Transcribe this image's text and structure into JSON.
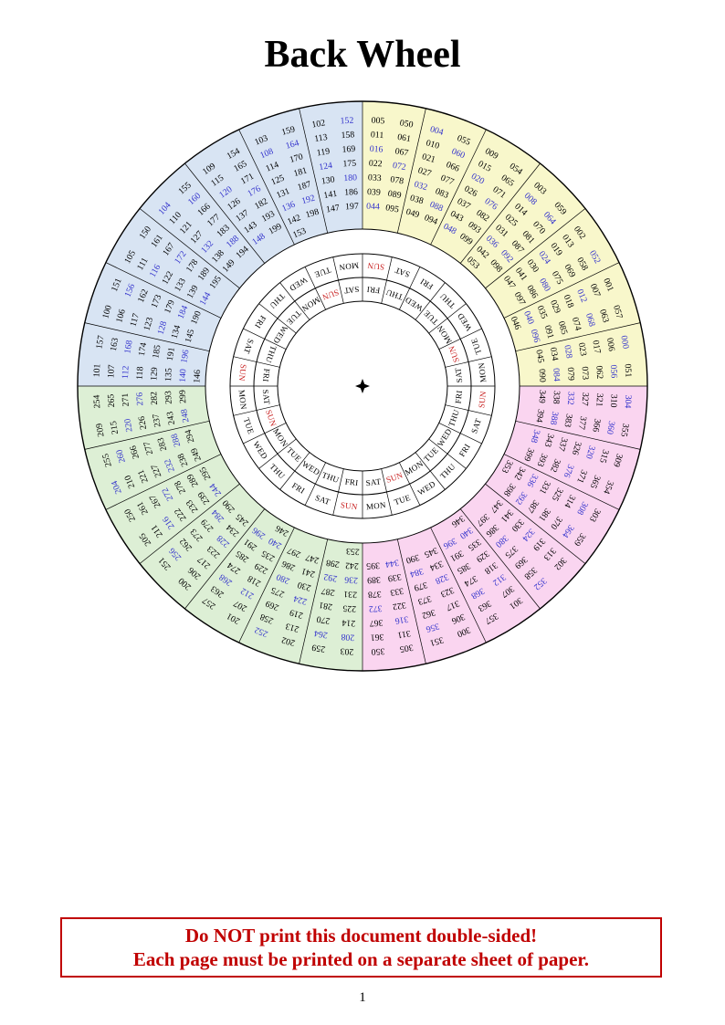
{
  "title": "Back Wheel",
  "page_number": "1",
  "warning": {
    "line1": "Do NOT print this document double-sided!",
    "line2": "Each page must be printed on a separate sheet of paper."
  },
  "colors": {
    "quadrant_yellow": "#f8f7cb",
    "quadrant_pink": "#fad5f0",
    "quadrant_green": "#ddefd5",
    "quadrant_blue": "#d8e4f3",
    "leap_year": "#3333cc",
    "sunday": "#c82020",
    "warning_red": "#c00000",
    "line": "#000000"
  },
  "wheel": {
    "center_marker": "four-pointed-star",
    "sectors": [
      {
        "q": "yellow",
        "outer": [
          "005",
          "011",
          "016",
          "022",
          "033",
          "039",
          "044"
        ],
        "inner": [
          "050",
          "061",
          "067",
          "072",
          "078",
          "089",
          "095"
        ]
      },
      {
        "q": "yellow",
        "outer": [
          "004",
          "010",
          "021",
          "027",
          "032",
          "038",
          "049"
        ],
        "inner": [
          "055",
          "060",
          "066",
          "077",
          "083",
          "088",
          "094"
        ]
      },
      {
        "q": "yellow",
        "outer": [
          "009",
          "015",
          "020",
          "026",
          "037",
          "043",
          "048"
        ],
        "inner": [
          "054",
          "065",
          "071",
          "076",
          "082",
          "093",
          "099"
        ]
      },
      {
        "q": "yellow",
        "outer": [
          "003",
          "008",
          "014",
          "025",
          "031",
          "036",
          "042",
          "053"
        ],
        "inner": [
          "059",
          "064",
          "070",
          "081",
          "087",
          "092",
          "098"
        ]
      },
      {
        "q": "yellow",
        "outer": [
          "002",
          "013",
          "019",
          "024",
          "030",
          "041",
          "047"
        ],
        "inner": [
          "052",
          "058",
          "069",
          "075",
          "080",
          "086",
          "097"
        ]
      },
      {
        "q": "yellow",
        "outer": [
          "001",
          "007",
          "012",
          "018",
          "029",
          "035",
          "040",
          "046"
        ],
        "inner": [
          "057",
          "063",
          "068",
          "074",
          "085",
          "091",
          "096"
        ]
      },
      {
        "q": "yellow",
        "outer": [
          "000",
          "006",
          "017",
          "023",
          "028",
          "034",
          "045"
        ],
        "inner": [
          "051",
          "056",
          "062",
          "073",
          "079",
          "084",
          "090"
        ]
      },
      {
        "q": "pink",
        "outer": [
          "304",
          "310",
          "321",
          "327",
          "332",
          "338",
          "349"
        ],
        "inner": [
          "355",
          "360",
          "366",
          "377",
          "383",
          "388",
          "394"
        ]
      },
      {
        "q": "pink",
        "outer": [
          "309",
          "315",
          "320",
          "326",
          "337",
          "343",
          "348"
        ],
        "inner": [
          "354",
          "365",
          "371",
          "376",
          "382",
          "393",
          "399"
        ]
      },
      {
        "q": "pink",
        "outer": [
          "303",
          "308",
          "314",
          "325",
          "331",
          "336",
          "342",
          "353"
        ],
        "inner": [
          "359",
          "364",
          "370",
          "381",
          "387",
          "392",
          "398"
        ]
      },
      {
        "q": "pink",
        "outer": [
          "302",
          "313",
          "319",
          "324",
          "330",
          "341",
          "347"
        ],
        "inner": [
          "352",
          "358",
          "369",
          "375",
          "380",
          "386",
          "397"
        ]
      },
      {
        "q": "pink",
        "outer": [
          "301",
          "307",
          "312",
          "318",
          "329",
          "335",
          "340",
          "346"
        ],
        "inner": [
          "357",
          "363",
          "368",
          "374",
          "385",
          "391",
          "396"
        ]
      },
      {
        "q": "pink",
        "outer": [
          "300",
          "306",
          "317",
          "323",
          "328",
          "334",
          "345"
        ],
        "inner": [
          "351",
          "356",
          "362",
          "373",
          "379",
          "384",
          "390"
        ]
      },
      {
        "q": "pink",
        "outer": [
          "305",
          "311",
          "316",
          "322",
          "333",
          "339",
          "344"
        ],
        "inner": [
          "350",
          "361",
          "367",
          "372",
          "378",
          "389",
          "395"
        ]
      },
      {
        "q": "green",
        "outer": [
          "203",
          "208",
          "214",
          "225",
          "231",
          "236",
          "242",
          "253"
        ],
        "inner": [
          "259",
          "264",
          "270",
          "281",
          "287",
          "292",
          "298"
        ]
      },
      {
        "q": "green",
        "outer": [
          "202",
          "213",
          "219",
          "224",
          "230",
          "241",
          "247"
        ],
        "inner": [
          "252",
          "258",
          "269",
          "275",
          "280",
          "286",
          "297"
        ]
      },
      {
        "q": "green",
        "outer": [
          "201",
          "207",
          "212",
          "218",
          "229",
          "235",
          "240",
          "246"
        ],
        "inner": [
          "257",
          "263",
          "268",
          "274",
          "285",
          "291",
          "296"
        ]
      },
      {
        "q": "green",
        "outer": [
          "200",
          "206",
          "217",
          "223",
          "228",
          "234",
          "245"
        ],
        "inner": [
          "251",
          "256",
          "262",
          "273",
          "279",
          "284",
          "290"
        ]
      },
      {
        "q": "green",
        "outer": [
          "205",
          "211",
          "216",
          "222",
          "233",
          "239",
          "244"
        ],
        "inner": [
          "250",
          "261",
          "267",
          "272",
          "278",
          "289",
          "295"
        ]
      },
      {
        "q": "green",
        "outer": [
          "204",
          "210",
          "221",
          "227",
          "232",
          "238",
          "249"
        ],
        "inner": [
          "255",
          "260",
          "266",
          "277",
          "283",
          "288",
          "294"
        ]
      },
      {
        "q": "green",
        "outer": [
          "209",
          "215",
          "220",
          "226",
          "237",
          "243",
          "248"
        ],
        "inner": [
          "254",
          "265",
          "271",
          "276",
          "282",
          "293",
          "299"
        ]
      },
      {
        "q": "blue",
        "outer": [
          "101",
          "107",
          "112",
          "118",
          "129",
          "135",
          "140",
          "146"
        ],
        "inner": [
          "157",
          "163",
          "168",
          "174",
          "185",
          "191",
          "196"
        ]
      },
      {
        "q": "blue",
        "outer": [
          "100",
          "106",
          "117",
          "123",
          "128",
          "134",
          "145"
        ],
        "inner": [
          "151",
          "156",
          "162",
          "173",
          "179",
          "184",
          "190"
        ]
      },
      {
        "q": "blue",
        "outer": [
          "105",
          "111",
          "116",
          "122",
          "133",
          "139",
          "144"
        ],
        "inner": [
          "150",
          "161",
          "167",
          "172",
          "178",
          "189",
          "195"
        ]
      },
      {
        "q": "blue",
        "outer": [
          "104",
          "110",
          "121",
          "127",
          "132",
          "138",
          "149"
        ],
        "inner": [
          "155",
          "160",
          "166",
          "177",
          "183",
          "188",
          "194"
        ]
      },
      {
        "q": "blue",
        "outer": [
          "109",
          "115",
          "120",
          "126",
          "137",
          "143",
          "148"
        ],
        "inner": [
          "154",
          "165",
          "171",
          "176",
          "182",
          "193",
          "199"
        ]
      },
      {
        "q": "blue",
        "outer": [
          "103",
          "108",
          "114",
          "125",
          "131",
          "136",
          "142",
          "153"
        ],
        "inner": [
          "159",
          "164",
          "170",
          "181",
          "187",
          "192",
          "198"
        ]
      },
      {
        "q": "blue",
        "outer": [
          "102",
          "113",
          "119",
          "124",
          "130",
          "141",
          "147"
        ],
        "inner": [
          "152",
          "158",
          "169",
          "175",
          "180",
          "186",
          "197"
        ]
      }
    ],
    "day_ring_outer": [
      "SUN",
      "SAT",
      "FRI",
      "THU",
      "WED",
      "TUE",
      "MON",
      "SUN",
      "SAT",
      "FRI",
      "THU",
      "WED",
      "TUE",
      "MON",
      "SUN",
      "SAT",
      "FRI",
      "THU",
      "WED",
      "TUE",
      "MON",
      "SUN",
      "SAT",
      "FRI",
      "THU",
      "WED",
      "TUE",
      "MON"
    ],
    "day_ring_inner": [
      "FRI",
      "THU",
      "WED",
      "TUE",
      "MON",
      "SUN",
      "SAT",
      "FRI",
      "THU",
      "WED",
      "TUE",
      "MON",
      "SUN",
      "SAT",
      "FRI",
      "THU",
      "WED",
      "TUE",
      "MON",
      "SUN",
      "SAT",
      "FRI",
      "THU",
      "WED",
      "TUE",
      "MON",
      "SUN",
      "SAT"
    ]
  },
  "leap_numbers": [
    "000",
    "004",
    "008",
    "012",
    "016",
    "020",
    "024",
    "028",
    "032",
    "036",
    "040",
    "044",
    "048",
    "052",
    "056",
    "060",
    "064",
    "068",
    "072",
    "076",
    "080",
    "084",
    "088",
    "092",
    "096",
    "104",
    "108",
    "112",
    "116",
    "120",
    "124",
    "128",
    "132",
    "136",
    "140",
    "144",
    "148",
    "152",
    "156",
    "160",
    "164",
    "168",
    "172",
    "176",
    "180",
    "184",
    "188",
    "192",
    "196",
    "204",
    "208",
    "212",
    "216",
    "220",
    "224",
    "228",
    "232",
    "236",
    "240",
    "244",
    "248",
    "252",
    "256",
    "260",
    "264",
    "268",
    "272",
    "276",
    "280",
    "284",
    "288",
    "292",
    "296",
    "304",
    "308",
    "312",
    "316",
    "320",
    "324",
    "328",
    "332",
    "336",
    "340",
    "344",
    "348",
    "352",
    "356",
    "360",
    "364",
    "368",
    "372",
    "376",
    "380",
    "384",
    "388",
    "392",
    "396"
  ]
}
